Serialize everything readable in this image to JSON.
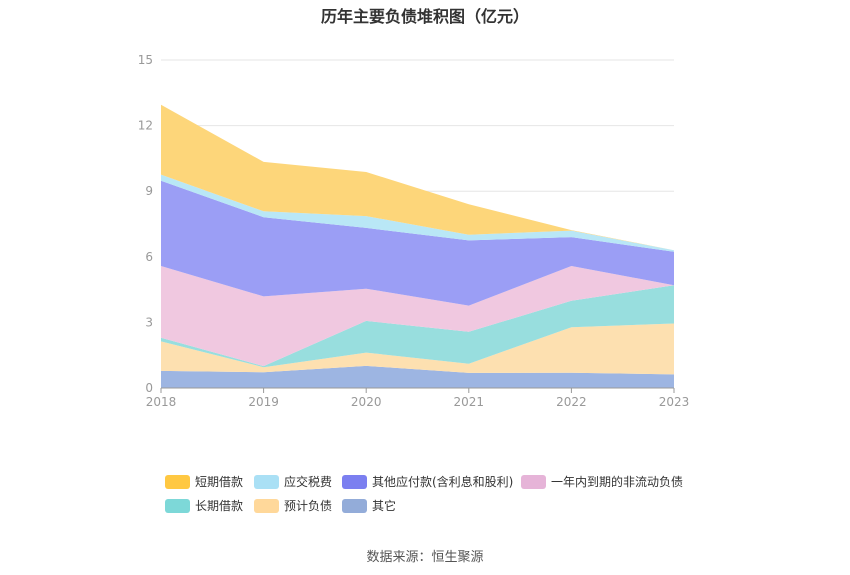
{
  "title": "历年主要负债堆积图（亿元）",
  "source": "数据来源：恒生聚源",
  "chart_data": {
    "type": "area",
    "stacked": true,
    "categories": [
      "2018",
      "2019",
      "2020",
      "2021",
      "2022",
      "2023"
    ],
    "ylim": [
      0,
      15
    ],
    "yticks": [
      "0",
      "3",
      "6",
      "9",
      "12",
      "15"
    ],
    "grid": true,
    "legend_position": "bottom",
    "series": [
      {
        "name": "其它",
        "color": "#9db5e2",
        "values": [
          0.78,
          0.72,
          1.01,
          0.69,
          0.7,
          0.62
        ]
      },
      {
        "name": "预计负债",
        "color": "#fde0b0",
        "values": [
          1.35,
          0.23,
          0.61,
          0.42,
          2.08,
          2.33
        ]
      },
      {
        "name": "长期借款",
        "color": "#98dede",
        "values": [
          0.17,
          0.05,
          1.45,
          1.46,
          1.21,
          1.75
        ]
      },
      {
        "name": "一年内到期的非流动负债",
        "color": "#f0c8e0",
        "values": [
          3.28,
          3.19,
          1.47,
          1.2,
          1.59,
          0
        ]
      },
      {
        "name": "其他应付款(含利息和股利)",
        "color": "#9b9ef5",
        "values": [
          3.9,
          3.62,
          2.78,
          2.98,
          1.32,
          1.53
        ]
      },
      {
        "name": "应交税费",
        "color": "#b9e7f6",
        "values": [
          0.28,
          0.27,
          0.54,
          0.26,
          0.3,
          0.07
        ]
      },
      {
        "name": "短期借款",
        "color": "#fdd67a",
        "values": [
          3.19,
          2.26,
          2.02,
          1.39,
          0.02,
          0
        ]
      }
    ]
  },
  "legend": [
    {
      "name": "短期借款",
      "swatch": "#ffc842"
    },
    {
      "name": "应交税费",
      "swatch": "#aae0f5"
    },
    {
      "name": "其他应付款(含利息和股利)",
      "swatch": "#7b7ff0"
    },
    {
      "name": "一年内到期的非流动负债",
      "swatch": "#e6b4d8"
    },
    {
      "name": "长期借款",
      "swatch": "#7dd8d8"
    },
    {
      "name": "预计负债",
      "swatch": "#ffd89a"
    },
    {
      "name": "其它",
      "swatch": "#93acd9"
    }
  ]
}
